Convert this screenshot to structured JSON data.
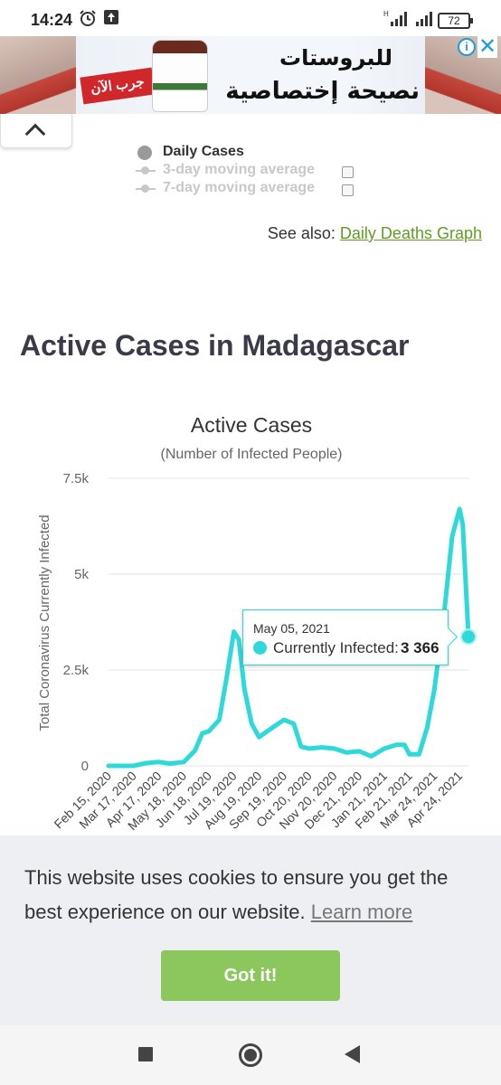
{
  "status_bar": {
    "time": "14:24",
    "battery": "72"
  },
  "ad": {
    "ribbon": "جرب الآن",
    "line1": "للبروستات",
    "line2": "نصيحة إختصاصية",
    "info_label": "i",
    "close_label": "✕"
  },
  "legend": {
    "daily_cases": "Daily Cases",
    "avg3": "3-day moving average",
    "avg7": "7-day moving average"
  },
  "see_also": {
    "prefix": "See also:",
    "link": "Daily Deaths Graph"
  },
  "section_title": "Active Cases in Madagascar",
  "chart_data": {
    "type": "line",
    "title": "Active Cases",
    "subtitle": "(Number of Infected People)",
    "ylabel": "Total Coronavirus Currently Infected",
    "ylim": [
      0,
      7500
    ],
    "y_ticks": [
      "0",
      "2.5k",
      "5k",
      "7.5k"
    ],
    "y_tick_values": [
      0,
      2500,
      5000,
      7500
    ],
    "x_ticks": [
      "Feb 15, 2020",
      "Mar 17, 2020",
      "Apr 17, 2020",
      "May 18, 2020",
      "Jun 18, 2020",
      "Jul 19, 2020",
      "Aug 19, 2020",
      "Sep 19, 2020",
      "Oct 20, 2020",
      "Nov 20, 2020",
      "Dec 21, 2020",
      "Jan 21, 2021",
      "Feb 21, 2021",
      "Mar 24, 2021",
      "Apr 24, 2021"
    ],
    "grid": true,
    "series": [
      {
        "name": "Currently Infected",
        "color": "#2fd9d9",
        "points": [
          [
            "Feb 15, 2020",
            0
          ],
          [
            "Mar 17, 2020",
            0
          ],
          [
            "Apr 1, 2020",
            70
          ],
          [
            "Apr 17, 2020",
            100
          ],
          [
            "May 1, 2020",
            60
          ],
          [
            "May 18, 2020",
            100
          ],
          [
            "Jun 1, 2020",
            400
          ],
          [
            "Jun 10, 2020",
            850
          ],
          [
            "Jun 18, 2020",
            900
          ],
          [
            "Jul 1, 2020",
            1200
          ],
          [
            "Jul 10, 2020",
            2300
          ],
          [
            "Jul 19, 2020",
            3500
          ],
          [
            "Jul 25, 2020",
            3300
          ],
          [
            "Aug 1, 2020",
            2000
          ],
          [
            "Aug 10, 2020",
            1100
          ],
          [
            "Aug 19, 2020",
            750
          ],
          [
            "Sep 5, 2020",
            1000
          ],
          [
            "Sep 19, 2020",
            1200
          ],
          [
            "Oct 1, 2020",
            1100
          ],
          [
            "Oct 10, 2020",
            500
          ],
          [
            "Oct 20, 2020",
            450
          ],
          [
            "Nov 5, 2020",
            480
          ],
          [
            "Nov 20, 2020",
            450
          ],
          [
            "Dec 5, 2020",
            350
          ],
          [
            "Dec 21, 2020",
            380
          ],
          [
            "Jan 5, 2021",
            250
          ],
          [
            "Jan 21, 2021",
            450
          ],
          [
            "Feb 5, 2021",
            550
          ],
          [
            "Feb 15, 2021",
            550
          ],
          [
            "Feb 21, 2021",
            300
          ],
          [
            "Mar 5, 2021",
            300
          ],
          [
            "Mar 15, 2021",
            1000
          ],
          [
            "Mar 24, 2021",
            2000
          ],
          [
            "Apr 5, 2021",
            4000
          ],
          [
            "Apr 15, 2021",
            6000
          ],
          [
            "Apr 24, 2021",
            6700
          ],
          [
            "Apr 28, 2021",
            6300
          ],
          [
            "May 5, 2021",
            3366
          ]
        ]
      }
    ],
    "tooltip": {
      "date": "May 05, 2021",
      "label": "Currently Infected:",
      "value": "3 366"
    }
  },
  "cookie": {
    "message": "This website uses cookies to ensure you get the best experience on our website.",
    "learn_more": "Learn more",
    "button": "Got it!"
  }
}
